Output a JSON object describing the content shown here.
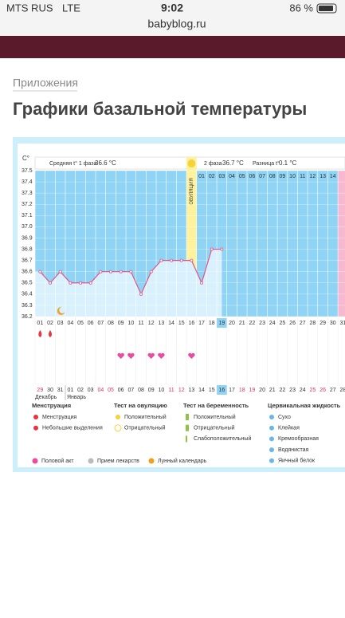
{
  "status": {
    "carrier": "MTS RUS",
    "network": "LTE",
    "time": "9:02",
    "battery": "86 %"
  },
  "url": "babyblog.ru",
  "breadcrumb": "Приложения",
  "title": "Графики базальной температуры",
  "chart": {
    "unit": "C°",
    "phase1_label": "Средняя t° 1 фаза",
    "phase1_value": "36.6 °C",
    "phase2_label": "2 фаза",
    "phase2_value": "36.7 °C",
    "diff_label": "Разница t°",
    "diff_value": "0.1 °C",
    "ovulation_label": "ОВУЛЯЦИЯ",
    "ylim": [
      36.2,
      37.5
    ],
    "yticks": [
      37.5,
      37.4,
      37.3,
      37.2,
      37.1,
      {
        "value": 37,
        "label": "37.0"
      },
      36.9,
      36.8,
      36.7,
      36.6,
      36.5,
      36.4,
      36.3,
      36.2
    ],
    "days": [
      "01",
      "02",
      "03",
      "04",
      "05",
      "06",
      "07",
      "08",
      "09",
      "10",
      "11",
      "12",
      "13",
      "14",
      "15",
      "16",
      "17",
      "18",
      "19",
      "20",
      "21",
      "22",
      "23",
      "24",
      "25",
      "26",
      "27",
      "28",
      "29",
      "30",
      "31"
    ],
    "phase2_days": [
      "01",
      "02",
      "03",
      "04",
      "05",
      "06",
      "07",
      "08",
      "09",
      "10",
      "11",
      "12",
      "13",
      "14"
    ],
    "temps": [
      36.6,
      36.5,
      36.6,
      36.5,
      36.5,
      36.5,
      36.6,
      36.6,
      36.6,
      36.6,
      36.4,
      36.6,
      36.7,
      36.7,
      36.7,
      36.7,
      36.5,
      36.8,
      36.8
    ],
    "ovulation_index": 15,
    "today_index": 18,
    "menstruation_days": [
      0,
      1
    ],
    "sex_days": [
      8,
      9,
      11,
      12,
      15
    ],
    "moon_days": [
      2
    ],
    "dates": [
      "29",
      "30",
      "31",
      "01",
      "02",
      "03",
      "04",
      "05",
      "06",
      "07",
      "08",
      "09",
      "10",
      "11",
      "12",
      "13",
      "14",
      "15",
      "16",
      "17",
      "18",
      "19",
      "20",
      "21",
      "22",
      "23",
      "24",
      "25",
      "26",
      "27",
      "28"
    ],
    "holiday_dates": [
      0,
      6,
      7,
      13,
      14,
      20,
      21,
      27,
      28
    ],
    "months": [
      "Декабрь",
      "Январь"
    ],
    "legend": {
      "groups": [
        {
          "title": "Менструация",
          "items": [
            "Менструация",
            "Небольшие выделения"
          ]
        },
        {
          "title": "Тест на овуляцию",
          "items": [
            "Положительный",
            "Отрицательный"
          ]
        },
        {
          "title": "Тест на беременность",
          "items": [
            "Положительный",
            "Отрицательный",
            "Слабоположительный"
          ]
        },
        {
          "title": "Цервикальная жидкость",
          "items": [
            "Сухо",
            "Клейкая",
            "Кремообразная",
            "Водянистая",
            "Яичный белок"
          ]
        }
      ],
      "extra": [
        "Половой акт",
        "Прием лекарств",
        "Лунный календарь"
      ]
    }
  }
}
